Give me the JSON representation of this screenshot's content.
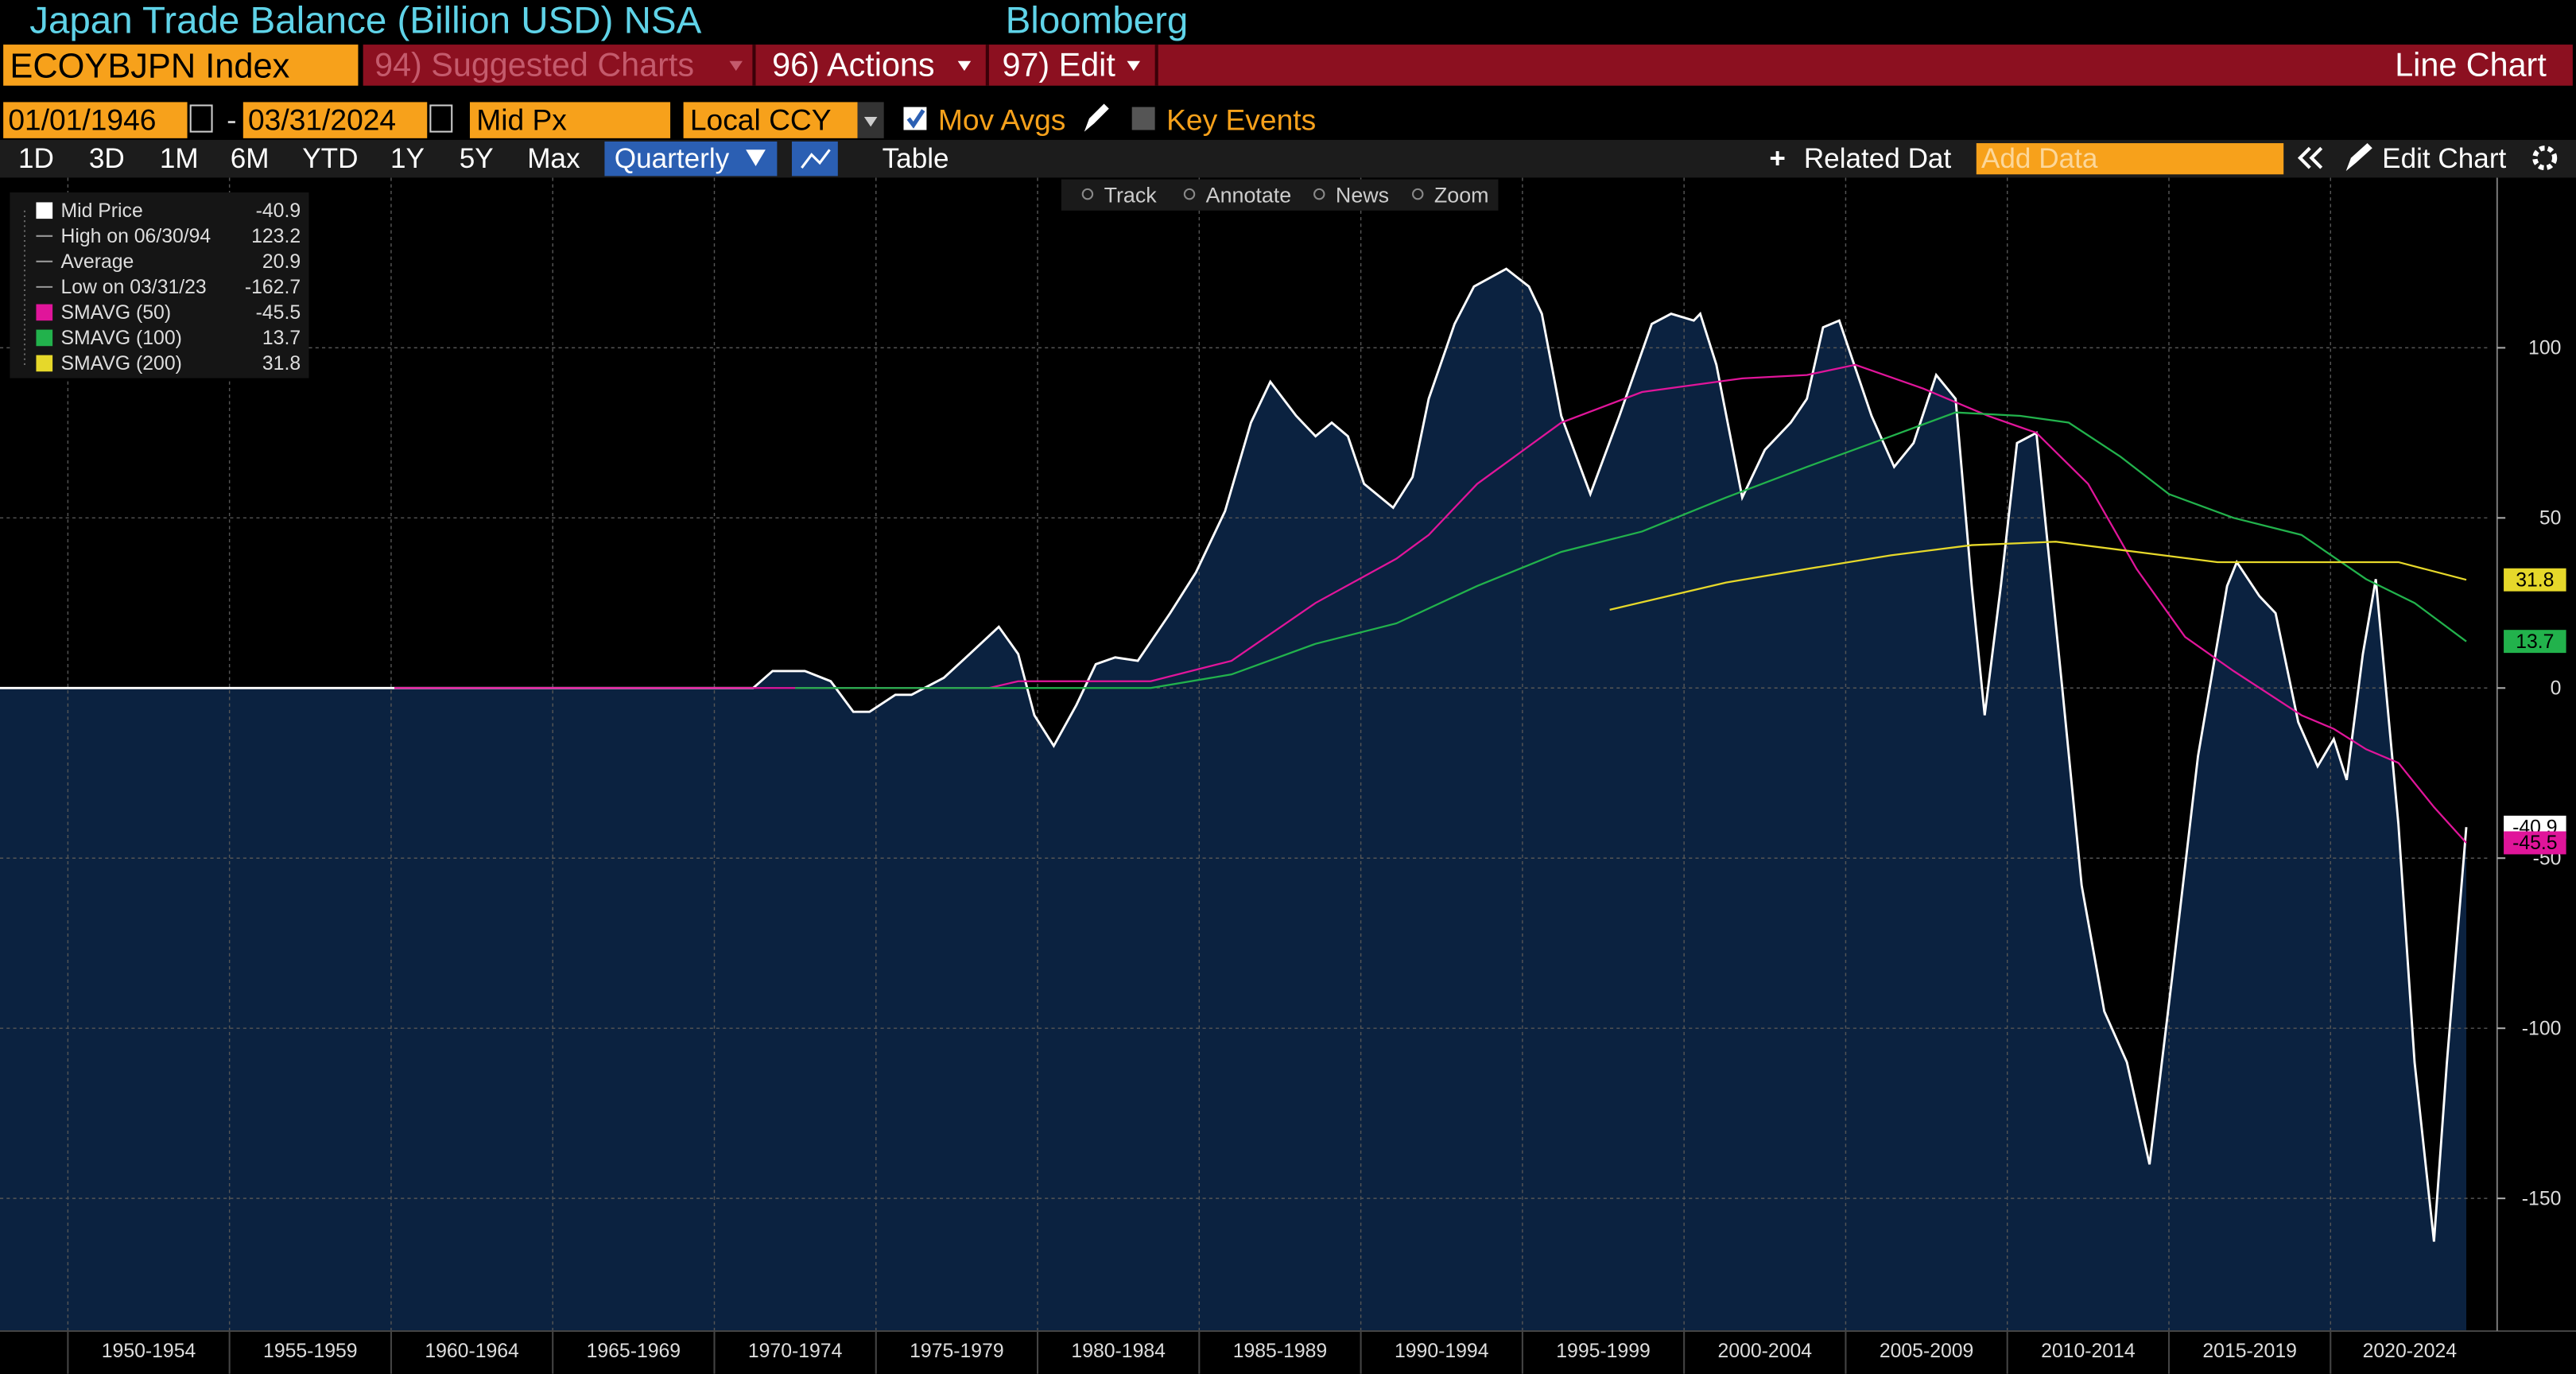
{
  "header": {
    "title": "Japan Trade Balance (Billion USD) NSA",
    "brand": "Bloomberg"
  },
  "toolbar": {
    "ticker": "ECOYBJPN Index",
    "suggested": "94) Suggested Charts",
    "actions": "96) Actions",
    "edit": "97) Edit",
    "chart_kind": "Line Chart"
  },
  "settings": {
    "start_date": "01/01/1946",
    "end_date": "03/31/2024",
    "price": "Mid Px",
    "currency": "Local CCY",
    "mov_avgs": "Mov Avgs",
    "key_events": "Key Events"
  },
  "range_buttons": [
    "1D",
    "3D",
    "1M",
    "6M",
    "YTD",
    "1Y",
    "5Y",
    "Max"
  ],
  "period": "Quarterly",
  "table_button": "Table",
  "related": "Related Dat",
  "add_data": "Add Data",
  "edit_chart": "Edit Chart",
  "tools": [
    "Track",
    "Annotate",
    "News",
    "Zoom"
  ],
  "chart_data": {
    "type": "line",
    "xlim": [
      1947.9,
      2024.9
    ],
    "xticks": [
      {
        "value": 1950,
        "label": "1950-1954"
      },
      {
        "value": 1955,
        "label": "1955-1959"
      },
      {
        "value": 1960,
        "label": "1960-1964"
      },
      {
        "value": 1965,
        "label": "1965-1969"
      },
      {
        "value": 1970,
        "label": "1970-1974"
      },
      {
        "value": 1975,
        "label": "1975-1979"
      },
      {
        "value": 1980,
        "label": "1980-1984"
      },
      {
        "value": 1985,
        "label": "1985-1989"
      },
      {
        "value": 1990,
        "label": "1990-1994"
      },
      {
        "value": 1995,
        "label": "1995-1999"
      },
      {
        "value": 2000,
        "label": "2000-2004"
      },
      {
        "value": 2005,
        "label": "2005-2009"
      },
      {
        "value": 2010,
        "label": "2010-2014"
      },
      {
        "value": 2015,
        "label": "2015-2019"
      },
      {
        "value": 2020,
        "label": "2020-2024"
      }
    ],
    "ylim": [
      -189,
      150
    ],
    "yticks": [
      -150,
      -100,
      -50,
      0,
      50,
      100
    ],
    "grid": true,
    "series": [
      {
        "name": "Mid Price",
        "color": "#ffffff",
        "area_color": "#0b2240",
        "x": [
          1947.9,
          1971.2,
          1971.8,
          1972.8,
          1973.6,
          1974.3,
          1974.8,
          1975.6,
          1976.1,
          1977.1,
          1977.9,
          1978.8,
          1979.4,
          1979.9,
          1980.5,
          1981.2,
          1981.8,
          1982.4,
          1983.1,
          1984.1,
          1984.9,
          1985.8,
          1986.6,
          1987.2,
          1988.0,
          1988.6,
          1989.1,
          1989.6,
          1990.1,
          1991.0,
          1991.6,
          1992.1,
          1992.9,
          1993.5,
          1994.5,
          1995.2,
          1995.6,
          1996.2,
          1997.1,
          1998.0,
          1999.0,
          1999.6,
          2000.3,
          2000.5,
          2001.0,
          2001.8,
          2002.5,
          2003.3,
          2003.8,
          2004.3,
          2004.8,
          2005.8,
          2006.5,
          2007.1,
          2007.8,
          2008.4,
          2008.9,
          2009.3,
          2009.8,
          2010.3,
          2010.9,
          2011.7,
          2012.3,
          2013.0,
          2013.7,
          2014.4,
          2015.1,
          2015.9,
          2016.8,
          2017.1,
          2017.8,
          2018.3,
          2019.0,
          2019.6,
          2020.1,
          2020.5,
          2021.0,
          2021.4,
          2022.1,
          2022.6,
          2023.2,
          2023.6,
          2024.2
        ],
        "values": [
          0,
          0,
          5,
          5,
          2,
          -7,
          -7,
          -2,
          -2,
          3,
          10,
          18,
          10,
          -8,
          -17,
          -5,
          7,
          9,
          8,
          22,
          34,
          52,
          78,
          90,
          80,
          74,
          78,
          74,
          60,
          53,
          62,
          85,
          107,
          118,
          123.2,
          118,
          110,
          80,
          57,
          80,
          107,
          110,
          108,
          110,
          95,
          56,
          70,
          78,
          85,
          106,
          108,
          80,
          65,
          72,
          92,
          85,
          30,
          -8,
          30,
          72,
          75,
          0,
          -58,
          -95,
          -110,
          -140,
          -85,
          -20,
          30,
          37,
          27,
          22,
          -10,
          -23,
          -15,
          -27,
          10,
          32,
          -40,
          -110,
          -162.7,
          -110,
          -40.9
        ]
      },
      {
        "name": "SMAVG (50)",
        "color": "#e0159a",
        "x": [
          1960.1,
          1978.5,
          1979.4,
          1983.5,
          1986.0,
          1988.6,
          1991.1,
          1992.1,
          1993.6,
          1996.2,
          1998.7,
          2001.8,
          2003.8,
          2005.3,
          2007.4,
          2009.4,
          2010.9,
          2012.5,
          2014.0,
          2015.5,
          2017.0,
          2019.1,
          2020.1,
          2021.1,
          2022.1,
          2023.2,
          2024.2
        ],
        "values": [
          0,
          0,
          2,
          2,
          8,
          25,
          38,
          45,
          60,
          78,
          87,
          91,
          92,
          95,
          88,
          80,
          75,
          60,
          35,
          15,
          5,
          -8,
          -12,
          -18,
          -22,
          -35,
          -45.5
        ]
      },
      {
        "name": "SMAVG (100)",
        "color": "#22b24c",
        "x": [
          1972.5,
          1983.5,
          1986.0,
          1988.6,
          1991.1,
          1993.6,
          1996.2,
          1998.7,
          2001.3,
          2003.8,
          2006.4,
          2008.4,
          2010.4,
          2011.9,
          2013.5,
          2015.0,
          2017.0,
          2019.1,
          2021.1,
          2022.6,
          2024.2
        ],
        "values": [
          0,
          0,
          4,
          13,
          19,
          30,
          40,
          46,
          56,
          65,
          74,
          81,
          80,
          78,
          68,
          57,
          50,
          45,
          32,
          25,
          13.7
        ]
      },
      {
        "name": "SMAVG (200)",
        "color": "#e6d82a",
        "x": [
          1997.7,
          2001.3,
          2003.8,
          2006.4,
          2008.9,
          2011.5,
          2014.0,
          2016.5,
          2020.1,
          2022.1,
          2024.2
        ],
        "values": [
          23,
          31,
          35,
          39,
          42,
          43,
          40,
          37,
          37,
          37,
          31.8
        ]
      }
    ],
    "stats": [
      {
        "label": "High on 06/30/94",
        "value": 123.2
      },
      {
        "label": "Average",
        "value": 20.9
      },
      {
        "label": "Low on 03/31/23",
        "value": -162.7
      }
    ]
  }
}
